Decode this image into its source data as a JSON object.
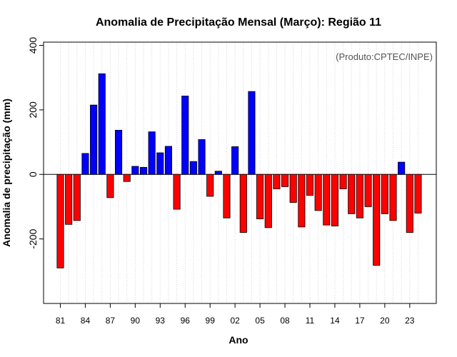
{
  "chart_data": {
    "type": "bar",
    "title": "Anomalia de Precipitação Mensal (Março): Região 11",
    "xlabel": "Ano",
    "ylabel": "Anomalia de precipitação (mm)",
    "credit": "(Produto:CPTEC/INPE)",
    "ylim": [
      -400,
      410
    ],
    "yticks": [
      -200,
      0,
      200,
      400
    ],
    "ytick_labels": [
      "-200",
      "0",
      "200",
      "400"
    ],
    "xtick_labels": [
      "81",
      "84",
      "87",
      "90",
      "93",
      "96",
      "99",
      "02",
      "05",
      "08",
      "11",
      "14",
      "17",
      "20",
      "23"
    ],
    "grid": "vertical-dotted",
    "colors": {
      "positive": "#0000ff",
      "negative": "#ff0000",
      "outline": "#000000",
      "grid": "#d3d3d3"
    },
    "years": [
      1981,
      1982,
      1983,
      1984,
      1985,
      1986,
      1987,
      1988,
      1989,
      1990,
      1991,
      1992,
      1993,
      1994,
      1995,
      1996,
      1997,
      1998,
      1999,
      2000,
      2001,
      2002,
      2003,
      2004,
      2005,
      2006,
      2007,
      2008,
      2009,
      2010,
      2011,
      2012,
      2013,
      2014,
      2015,
      2016,
      2017,
      2018,
      2019,
      2020,
      2021,
      2022,
      2023,
      2024
    ],
    "values": [
      -290,
      -155,
      -143,
      65,
      215,
      312,
      -72,
      137,
      -22,
      25,
      22,
      132,
      67,
      87,
      -108,
      243,
      40,
      108,
      -68,
      10,
      -135,
      86,
      -180,
      257,
      -138,
      -165,
      -45,
      -38,
      -87,
      -163,
      -65,
      -112,
      -157,
      -160,
      -45,
      -122,
      -135,
      -100,
      -282,
      -122,
      -143,
      38,
      -180,
      -120
    ]
  }
}
